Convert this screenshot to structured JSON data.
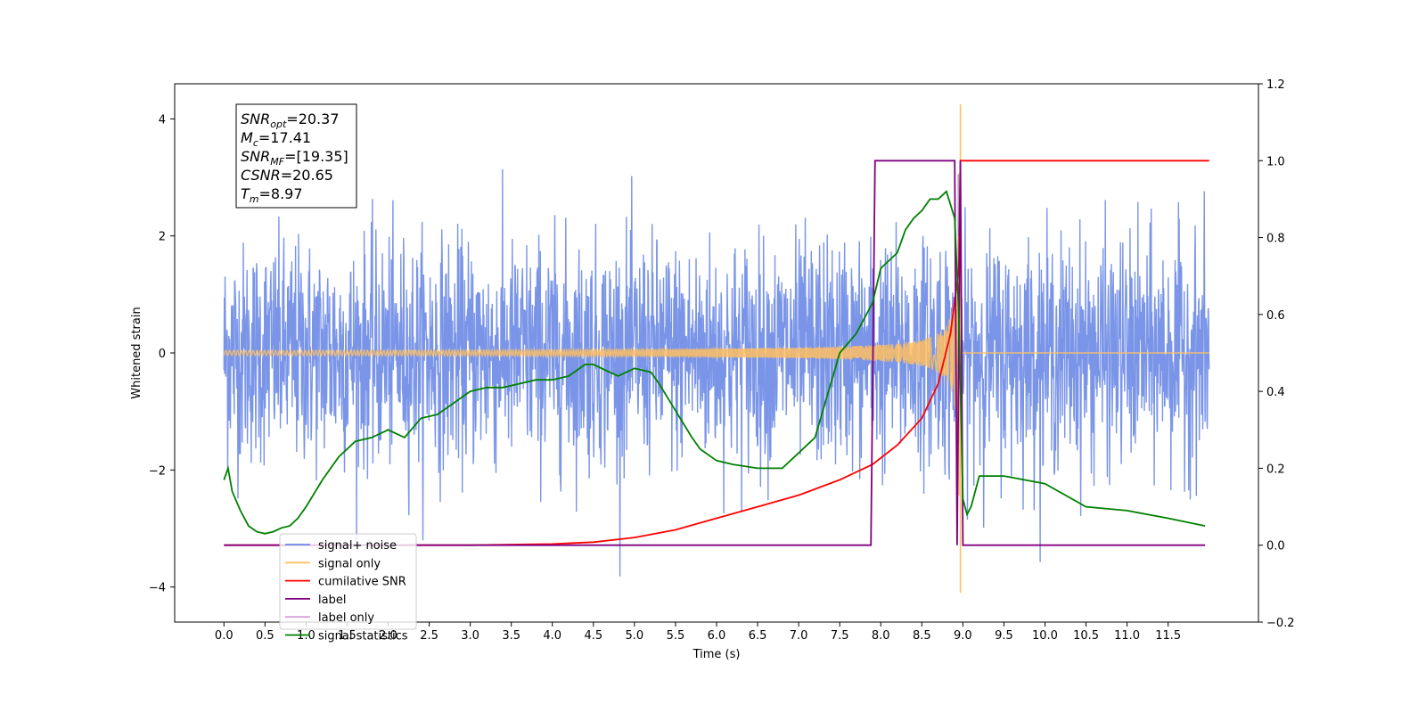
{
  "chart_data": {
    "type": "line",
    "title": "",
    "xlabel": "Time (s)",
    "ylabel": "Whitened strain",
    "y2label": "",
    "xlim": [
      -0.6,
      12.6
    ],
    "ylim": [
      -4.6,
      4.6
    ],
    "y2lim": [
      -0.2,
      1.2
    ],
    "xticks": [
      0.0,
      0.5,
      1.0,
      1.5,
      2.0,
      2.5,
      3.0,
      3.5,
      4.0,
      4.5,
      5.0,
      5.5,
      6.0,
      6.5,
      7.0,
      7.5,
      8.0,
      8.5,
      9.0,
      9.5,
      10.0,
      10.5,
      11.0,
      11.5
    ],
    "xtick_labels": [
      "0.0",
      "0.5",
      "1.0",
      "1.5",
      "2.0",
      "2.5",
      "3.0",
      "3.5",
      "4.0",
      "4.5",
      "5.0",
      "5.5",
      "6.0",
      "6.5",
      "7.0",
      "7.5",
      "8.0",
      "8.5",
      "9.0",
      "9.5",
      "10.0",
      "10.5",
      "11.0",
      "11.5"
    ],
    "yticks": [
      -4,
      -2,
      0,
      2,
      4
    ],
    "ytick_labels": [
      "−4",
      "−2",
      "0",
      "2",
      "4"
    ],
    "y2ticks": [
      -0.2,
      0.0,
      0.2,
      0.4,
      0.6,
      0.8,
      1.0,
      1.2
    ],
    "y2tick_labels": [
      "−0.2",
      "0.0",
      "0.2",
      "0.4",
      "0.6",
      "0.8",
      "1.0",
      "1.2"
    ],
    "grid": false,
    "legend_position": "lower-left",
    "annotation": [
      {
        "label": "SNR",
        "sub": "opt",
        "value": "=20.37"
      },
      {
        "label": "M",
        "sub": "c",
        "value": "=17.41"
      },
      {
        "label": "SNR",
        "sub": "MF",
        "value": "=[19.35]"
      },
      {
        "label": "CSNR",
        "sub": "",
        "value": "=20.65"
      },
      {
        "label": "T",
        "sub": "m",
        "value": "=8.97"
      }
    ],
    "series": [
      {
        "name": "signal+ noise",
        "axis": "left",
        "color": "#6b8ae6",
        "description_values": {
          "x_range": [
            0.0,
            12.0
          ],
          "amplitude_typical": 1.9,
          "amplitude_peak": 3.8
        }
      },
      {
        "name": "signal only",
        "axis": "left",
        "color": "#ffbf60",
        "description_values": {
          "merger_time": 8.97,
          "peak_amplitude": 4.25
        }
      },
      {
        "name": "cumilative SNR",
        "axis": "right",
        "color": "#ff0000",
        "x": [
          0.0,
          3.0,
          4.0,
          4.5,
          5.0,
          5.5,
          6.0,
          6.5,
          7.0,
          7.5,
          7.9,
          8.2,
          8.5,
          8.7,
          8.85,
          8.95,
          8.97,
          12.0
        ],
        "y": [
          0.0,
          0.0,
          0.003,
          0.008,
          0.02,
          0.04,
          0.07,
          0.1,
          0.13,
          0.17,
          0.21,
          0.26,
          0.33,
          0.42,
          0.55,
          0.72,
          1.0,
          1.0
        ]
      },
      {
        "name": "label",
        "axis": "right",
        "color": "#800080",
        "x": [
          0.0,
          7.88,
          7.93,
          8.9,
          8.93,
          8.97,
          9.0,
          11.95
        ],
        "y": [
          0.0,
          0.0,
          1.0,
          1.0,
          0.0,
          1.0,
          0.0,
          0.0
        ]
      },
      {
        "name": "label only",
        "axis": "right",
        "color": "#d4a0d4",
        "x": [],
        "y": []
      },
      {
        "name": "signal statistics",
        "axis": "right",
        "color": "#008000",
        "x": [
          0.0,
          0.05,
          0.1,
          0.2,
          0.3,
          0.4,
          0.5,
          0.6,
          0.7,
          0.8,
          0.9,
          1.0,
          1.2,
          1.4,
          1.6,
          1.8,
          2.0,
          2.2,
          2.4,
          2.6,
          2.8,
          3.0,
          3.2,
          3.4,
          3.6,
          3.8,
          4.0,
          4.2,
          4.4,
          4.5,
          4.6,
          4.8,
          5.0,
          5.2,
          5.3,
          5.5,
          5.7,
          5.8,
          6.0,
          6.2,
          6.5,
          6.8,
          7.0,
          7.2,
          7.5,
          7.7,
          7.9,
          8.0,
          8.2,
          8.3,
          8.4,
          8.5,
          8.6,
          8.7,
          8.8,
          8.9,
          8.95,
          9.0,
          9.05,
          9.1,
          9.2,
          9.5,
          10.0,
          10.5,
          11.0,
          11.5,
          11.95
        ],
        "y": [
          0.17,
          0.2,
          0.14,
          0.09,
          0.05,
          0.035,
          0.03,
          0.035,
          0.045,
          0.05,
          0.07,
          0.1,
          0.17,
          0.23,
          0.27,
          0.28,
          0.3,
          0.28,
          0.33,
          0.34,
          0.37,
          0.4,
          0.41,
          0.41,
          0.42,
          0.43,
          0.43,
          0.44,
          0.47,
          0.47,
          0.46,
          0.44,
          0.46,
          0.45,
          0.42,
          0.35,
          0.28,
          0.25,
          0.22,
          0.21,
          0.2,
          0.2,
          0.24,
          0.28,
          0.5,
          0.55,
          0.63,
          0.72,
          0.76,
          0.82,
          0.85,
          0.87,
          0.9,
          0.9,
          0.92,
          0.85,
          0.6,
          0.12,
          0.08,
          0.1,
          0.18,
          0.18,
          0.16,
          0.1,
          0.09,
          0.07,
          0.05
        ]
      }
    ]
  }
}
